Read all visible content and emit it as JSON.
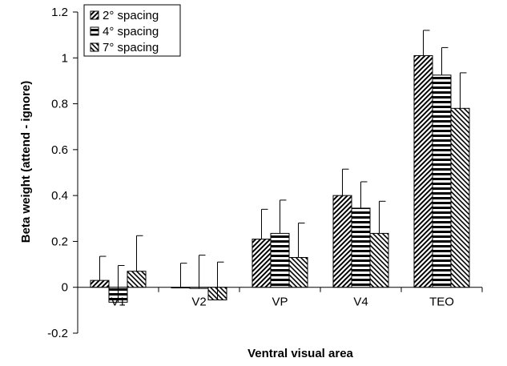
{
  "chart_data": {
    "type": "bar",
    "title": "",
    "xlabel": "Ventral visual area",
    "ylabel": "Beta weight (attend - ignore)",
    "ylim": [
      -0.2,
      1.2
    ],
    "yticks": [
      -0.2,
      0,
      0.2,
      0.4,
      0.6,
      0.8,
      1,
      1.2
    ],
    "ytick_labels": [
      "-0.2",
      "0",
      "0.2",
      "0.4",
      "0.6",
      "0.8",
      "1",
      "1.2"
    ],
    "categories": [
      "V1",
      "V2",
      "VP",
      "V4",
      "TEO"
    ],
    "legend_position": "top-left",
    "grid": false,
    "series": [
      {
        "name": "2° spacing",
        "pattern": "diagonal-up",
        "values": [
          0.03,
          0.0,
          0.21,
          0.4,
          1.01
        ],
        "errors": [
          0.105,
          0.105,
          0.13,
          0.115,
          0.11
        ]
      },
      {
        "name": "4° spacing",
        "pattern": "horizontal",
        "values": [
          -0.065,
          -0.005,
          0.235,
          0.345,
          0.925
        ],
        "errors": [
          0.16,
          0.145,
          0.145,
          0.115,
          0.12
        ]
      },
      {
        "name": "7° spacing",
        "pattern": "diagonal-down",
        "values": [
          0.07,
          -0.055,
          0.13,
          0.235,
          0.78
        ],
        "errors": [
          0.155,
          0.165,
          0.15,
          0.14,
          0.155
        ]
      }
    ]
  }
}
